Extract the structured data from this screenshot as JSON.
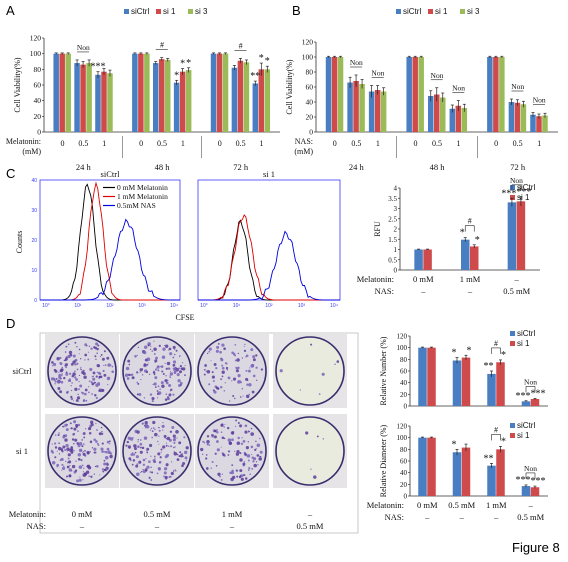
{
  "figure_label": "Figure 8",
  "colors": {
    "siCtrl": "#4a7ec2",
    "si1": "#cf4a4a",
    "si3": "#9bbb59",
    "flow_0": "#000000",
    "flow_1": "#e00000",
    "flow_05": "#0000e0"
  },
  "panel_A": {
    "letter": "A",
    "chart_data": {
      "type": "bar",
      "ylabel": "Cell Viability(%)",
      "ylim": [
        0,
        120
      ],
      "yticks": [
        "0",
        "20",
        "40",
        "60",
        "80",
        "100",
        "120"
      ],
      "legend": [
        "siCtrl",
        "si 1",
        "si 3"
      ],
      "row_label": "Melatonin:",
      "row_unit": "(mM)",
      "groups": [
        {
          "time": "24 h",
          "doses": [
            "0",
            "0.5",
            "1"
          ],
          "values": [
            [
              100,
              100,
              100
            ],
            [
              88,
              86,
              88
            ],
            [
              73,
              77,
              75
            ]
          ],
          "errors": [
            [
              1,
              1,
              1
            ],
            [
              4,
              4,
              4
            ],
            [
              4,
              4,
              4
            ]
          ],
          "marks": [
            [],
            [
              "Non"
            ],
            [
              "***"
            ]
          ]
        },
        {
          "time": "48 h",
          "doses": [
            "0",
            "0.5",
            "1"
          ],
          "values": [
            [
              100,
              100,
              100
            ],
            [
              88,
              93,
              92
            ],
            [
              63,
              77,
              79
            ]
          ],
          "errors": [
            [
              1,
              1,
              1
            ],
            [
              2,
              2,
              2
            ],
            [
              3,
              4,
              3
            ]
          ],
          "marks": [
            [],
            [
              "#"
            ],
            [
              "*",
              "*",
              "*"
            ]
          ]
        },
        {
          "time": "72 h",
          "doses": [
            "0",
            "0.5",
            "1"
          ],
          "values": [
            [
              100,
              100,
              100
            ],
            [
              82,
              91,
              89
            ],
            [
              62,
              80,
              80
            ]
          ],
          "errors": [
            [
              1,
              1,
              1
            ],
            [
              3,
              3,
              3
            ],
            [
              3,
              8,
              4
            ]
          ],
          "marks": [
            [],
            [
              "#"
            ],
            [
              "**",
              "*",
              "*"
            ]
          ]
        }
      ]
    }
  },
  "panel_B": {
    "letter": "B",
    "chart_data": {
      "type": "bar",
      "ylabel": "Cell Viability(%)",
      "ylim": [
        0,
        120
      ],
      "yticks": [
        "0",
        "20",
        "40",
        "60",
        "80",
        "100",
        "120"
      ],
      "legend": [
        "siCtrl",
        "si 1",
        "si 3"
      ],
      "row_label": "NAS:",
      "row_unit": "(mM)",
      "groups": [
        {
          "time": "24 h",
          "doses": [
            "0",
            "0.5",
            "1"
          ],
          "values": [
            [
              100,
              100,
              100
            ],
            [
              66,
              68,
              64
            ],
            [
              54,
              56,
              54
            ]
          ],
          "errors": [
            [
              1,
              1,
              1
            ],
            [
              7,
              8,
              6
            ],
            [
              8,
              6,
              5
            ]
          ],
          "marks": [
            [],
            [
              "Non"
            ],
            [
              "Non"
            ]
          ]
        },
        {
          "time": "48 h",
          "doses": [
            "0",
            "0.5",
            "1"
          ],
          "values": [
            [
              100,
              100,
              100
            ],
            [
              48,
              50,
              46
            ],
            [
              31,
              35,
              32
            ]
          ],
          "errors": [
            [
              1,
              1,
              1
            ],
            [
              7,
              9,
              6
            ],
            [
              5,
              7,
              5
            ]
          ],
          "marks": [
            [],
            [
              "Non"
            ],
            [
              "Non"
            ]
          ]
        },
        {
          "time": "72 h",
          "doses": [
            "0",
            "0.5",
            "1"
          ],
          "values": [
            [
              100,
              100,
              100
            ],
            [
              40,
              39,
              37
            ],
            [
              23,
              21,
              22
            ]
          ],
          "errors": [
            [
              1,
              1,
              1
            ],
            [
              4,
              4,
              4
            ],
            [
              3,
              3,
              3
            ]
          ],
          "marks": [
            [],
            [
              "Non"
            ],
            [
              "Non"
            ]
          ]
        }
      ]
    }
  },
  "panel_C": {
    "letter": "C",
    "flow": {
      "titles": [
        "siCtrl",
        "si 1"
      ],
      "ylabel": "Counts",
      "xlabel": "CFSE",
      "legend": [
        "0 mM Melatonin",
        "1 mM Melatonin",
        "0.5mM  NAS"
      ],
      "yticks": [
        "0",
        "10",
        "20",
        "30",
        "40"
      ],
      "xticks": [
        "10°",
        "10¹",
        "10²",
        "10³",
        "10⁴"
      ]
    },
    "chart_data": {
      "type": "bar",
      "ylabel": "RFU",
      "ylim": [
        0,
        4
      ],
      "yticks": [
        "0",
        "0.5",
        "1",
        "1.5",
        "2",
        "2.5",
        "3",
        "3.5",
        "4"
      ],
      "legend": [
        "siCtrl",
        "si 1"
      ],
      "series": [
        {
          "name": "siCtrl",
          "values": [
            1.0,
            1.48,
            3.3
          ],
          "errors": [
            0.02,
            0.1,
            0.2
          ]
        },
        {
          "name": "si 1",
          "values": [
            1.0,
            1.15,
            3.35
          ],
          "errors": [
            0.02,
            0.08,
            0.22
          ]
        }
      ],
      "marks": [
        "",
        "#",
        "Non"
      ],
      "stars": [
        [
          "",
          ""
        ],
        [
          "*",
          "*"
        ],
        [
          "***",
          "***"
        ]
      ],
      "rows": [
        {
          "label": "Melatonin:",
          "values": [
            "0 mM",
            "1 mM",
            "–"
          ]
        },
        {
          "label": "NAS:",
          "values": [
            "–",
            "–",
            "0.5 mM"
          ]
        }
      ]
    }
  },
  "panel_D": {
    "letter": "D",
    "row_labels": [
      "siCtrl",
      "si 1"
    ],
    "bottom_rows": [
      {
        "label": "Melatonin:",
        "values": [
          "0 mM",
          "0.5 mM",
          "1 mM",
          "–"
        ]
      },
      {
        "label": "NAS:",
        "values": [
          "–",
          "–",
          "–",
          "0.5 mM"
        ]
      }
    ],
    "colony_density": [
      [
        1.0,
        0.8,
        0.55,
        0.04
      ],
      [
        1.0,
        0.85,
        0.7,
        0.03
      ]
    ],
    "chart_number": {
      "type": "bar",
      "ylabel": "Relative  Number (%)",
      "ylim": [
        0,
        120
      ],
      "yticks": [
        "0",
        "20",
        "40",
        "60",
        "80",
        "100",
        "120"
      ],
      "legend": [
        "siCtrl",
        "si 1"
      ],
      "series": [
        {
          "name": "siCtrl",
          "values": [
            100,
            78,
            55,
            8
          ],
          "errors": [
            1,
            5,
            5,
            1
          ]
        },
        {
          "name": "si 1",
          "values": [
            100,
            83,
            75,
            12
          ],
          "errors": [
            1,
            4,
            4,
            1
          ]
        }
      ],
      "marks": [
        "",
        "",
        "#",
        "Non"
      ],
      "stars": [
        [
          "",
          ""
        ],
        [
          "*",
          "*"
        ],
        [
          "**",
          "*"
        ],
        [
          "***",
          "***"
        ]
      ]
    },
    "chart_diameter": {
      "type": "bar",
      "ylabel": "Relative Diameter (%)",
      "ylim": [
        0,
        120
      ],
      "yticks": [
        "0",
        "20",
        "40",
        "60",
        "80",
        "100",
        "120"
      ],
      "legend": [
        "siCtrl",
        "si 1"
      ],
      "series": [
        {
          "name": "siCtrl",
          "values": [
            100,
            75,
            52,
            17
          ],
          "errors": [
            1,
            5,
            4,
            2
          ]
        },
        {
          "name": "si 1",
          "values": [
            100,
            83,
            80,
            15
          ],
          "errors": [
            1,
            6,
            5,
            2
          ]
        }
      ],
      "marks": [
        "",
        "",
        "#",
        "Non"
      ],
      "stars": [
        [
          "",
          ""
        ],
        [
          "*",
          ""
        ],
        [
          "**",
          "*"
        ],
        [
          "***",
          "***"
        ]
      ],
      "rows": [
        {
          "label": "Melatonin:",
          "values": [
            "0 mM",
            "0.5 mM",
            "1 mM",
            "–"
          ]
        },
        {
          "label": "NAS:",
          "values": [
            "–",
            "–",
            "–",
            "0.5 mM"
          ]
        }
      ]
    }
  }
}
